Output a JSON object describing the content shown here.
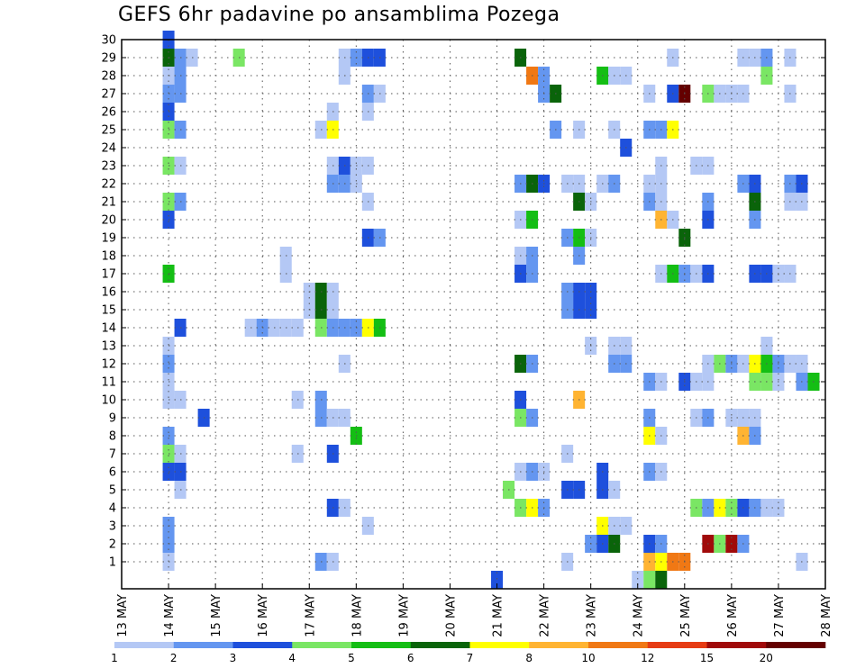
{
  "chart_data": {
    "type": "heatmap",
    "title": "GEFS 6hr padavine po ansamblima Pozega",
    "xlabel": "",
    "ylabel": "",
    "x_tick_labels": [
      "13 MAY",
      "14 MAY",
      "15 MAY",
      "16 MAY",
      "17 MAY",
      "18 MAY",
      "19 MAY",
      "20 MAY",
      "21 MAY",
      "22 MAY",
      "23 MAY",
      "24 MAY",
      "25 MAY",
      "26 MAY",
      "27 MAY",
      "28 MAY"
    ],
    "y_tick_labels": [
      1,
      2,
      3,
      4,
      5,
      6,
      7,
      8,
      9,
      10,
      11,
      12,
      13,
      14,
      15,
      16,
      17,
      18,
      19,
      20,
      21,
      22,
      23,
      24,
      25,
      26,
      27,
      28,
      29,
      30
    ],
    "x_range_days": [
      13,
      28
    ],
    "y_range_members": [
      0,
      30
    ],
    "grid": true,
    "colorbar": {
      "labels": [
        "1",
        "2",
        "3",
        "4",
        "5",
        "6",
        "7",
        "8",
        "10",
        "12",
        "15",
        "20"
      ],
      "bounds": [
        1,
        2,
        3,
        4,
        5,
        6,
        7,
        8,
        10,
        12,
        15,
        20
      ],
      "colors": [
        "#b4c8f5",
        "#6496f0",
        "#1e50dc",
        "#7ae664",
        "#14be14",
        "#0a640a",
        "#ffff00",
        "#ffb432",
        "#f07814",
        "#e63c14",
        "#a00a0a",
        "#640000"
      ]
    },
    "cell_width_days": 0.25,
    "cells": [
      [
        14.0,
        30,
        2
      ],
      [
        14.0,
        29,
        5
      ],
      [
        14.25,
        29,
        3
      ],
      [
        14.25,
        29,
        1
      ],
      [
        14.5,
        29,
        0
      ],
      [
        15.5,
        29,
        3
      ],
      [
        17.75,
        29,
        0
      ],
      [
        18.0,
        29,
        1
      ],
      [
        18.25,
        29,
        2
      ],
      [
        18.5,
        29,
        2
      ],
      [
        21.5,
        29,
        5
      ],
      [
        24.75,
        29,
        0
      ],
      [
        26.25,
        29,
        0
      ],
      [
        26.5,
        29,
        0
      ],
      [
        26.75,
        29,
        1
      ],
      [
        27.25,
        29,
        0
      ],
      [
        14.0,
        28,
        0
      ],
      [
        14.25,
        28,
        1
      ],
      [
        17.75,
        28,
        0
      ],
      [
        21.75,
        28,
        8
      ],
      [
        22.0,
        28,
        1
      ],
      [
        23.25,
        28,
        4
      ],
      [
        23.5,
        28,
        0
      ],
      [
        23.75,
        28,
        0
      ],
      [
        26.75,
        28,
        3
      ],
      [
        14.0,
        27,
        1
      ],
      [
        14.25,
        27,
        1
      ],
      [
        18.25,
        27,
        1
      ],
      [
        18.5,
        27,
        0
      ],
      [
        22.0,
        27,
        1
      ],
      [
        22.25,
        27,
        5
      ],
      [
        24.25,
        27,
        0
      ],
      [
        24.75,
        27,
        2
      ],
      [
        25.0,
        27,
        11
      ],
      [
        25.5,
        27,
        3
      ],
      [
        25.75,
        27,
        0
      ],
      [
        26.0,
        27,
        0
      ],
      [
        26.25,
        27,
        0
      ],
      [
        27.25,
        27,
        0
      ],
      [
        14.0,
        26,
        2
      ],
      [
        17.5,
        26,
        0
      ],
      [
        18.25,
        26,
        0
      ],
      [
        14.0,
        25,
        3
      ],
      [
        14.25,
        25,
        1
      ],
      [
        17.25,
        25,
        0
      ],
      [
        17.5,
        25,
        6
      ],
      [
        22.25,
        25,
        1
      ],
      [
        22.75,
        25,
        0
      ],
      [
        23.5,
        25,
        0
      ],
      [
        24.25,
        25,
        1
      ],
      [
        24.5,
        25,
        1
      ],
      [
        24.75,
        25,
        6
      ],
      [
        23.75,
        24,
        2
      ],
      [
        14.0,
        23,
        3
      ],
      [
        14.25,
        23,
        0
      ],
      [
        17.5,
        23,
        0
      ],
      [
        17.75,
        23,
        2
      ],
      [
        18.0,
        23,
        0
      ],
      [
        18.25,
        23,
        0
      ],
      [
        24.5,
        23,
        0
      ],
      [
        25.25,
        23,
        0
      ],
      [
        25.5,
        23,
        0
      ],
      [
        17.5,
        22,
        1
      ],
      [
        17.75,
        22,
        1
      ],
      [
        18.0,
        22,
        0
      ],
      [
        21.5,
        22,
        1
      ],
      [
        21.75,
        22,
        5
      ],
      [
        22.0,
        22,
        2
      ],
      [
        22.5,
        22,
        0
      ],
      [
        22.75,
        22,
        0
      ],
      [
        23.25,
        22,
        0
      ],
      [
        23.5,
        22,
        1
      ],
      [
        24.25,
        22,
        0
      ],
      [
        24.5,
        22,
        0
      ],
      [
        26.25,
        22,
        1
      ],
      [
        26.5,
        22,
        2
      ],
      [
        27.25,
        22,
        1
      ],
      [
        27.5,
        22,
        2
      ],
      [
        14.0,
        21,
        3
      ],
      [
        14.25,
        21,
        1
      ],
      [
        18.25,
        21,
        0
      ],
      [
        22.75,
        21,
        5
      ],
      [
        23.0,
        21,
        0
      ],
      [
        24.25,
        21,
        1
      ],
      [
        24.5,
        21,
        0
      ],
      [
        25.5,
        21,
        1
      ],
      [
        26.5,
        21,
        5
      ],
      [
        27.25,
        21,
        0
      ],
      [
        27.5,
        21,
        0
      ],
      [
        14.0,
        20,
        2
      ],
      [
        21.5,
        20,
        0
      ],
      [
        21.75,
        20,
        4
      ],
      [
        24.5,
        20,
        7
      ],
      [
        24.75,
        20,
        0
      ],
      [
        25.5,
        20,
        2
      ],
      [
        26.5,
        20,
        1
      ],
      [
        18.25,
        19,
        2
      ],
      [
        18.5,
        19,
        1
      ],
      [
        22.5,
        19,
        1
      ],
      [
        22.75,
        19,
        4
      ],
      [
        23.0,
        19,
        0
      ],
      [
        25.0,
        19,
        5
      ],
      [
        16.5,
        18,
        0
      ],
      [
        21.5,
        18,
        0
      ],
      [
        21.75,
        18,
        1
      ],
      [
        22.75,
        18,
        1
      ],
      [
        14.0,
        17,
        4
      ],
      [
        16.5,
        17,
        0
      ],
      [
        21.5,
        17,
        2
      ],
      [
        21.75,
        17,
        1
      ],
      [
        24.5,
        17,
        0
      ],
      [
        24.75,
        17,
        4
      ],
      [
        25.0,
        17,
        1
      ],
      [
        25.25,
        17,
        0
      ],
      [
        25.5,
        17,
        2
      ],
      [
        26.5,
        17,
        2
      ],
      [
        26.75,
        17,
        2
      ],
      [
        27.0,
        17,
        0
      ],
      [
        27.25,
        17,
        0
      ],
      [
        17.0,
        16,
        0
      ],
      [
        17.25,
        16,
        5
      ],
      [
        17.5,
        16,
        0
      ],
      [
        22.5,
        16,
        1
      ],
      [
        22.75,
        16,
        2
      ],
      [
        23.0,
        16,
        2
      ],
      [
        17.0,
        15,
        0
      ],
      [
        17.25,
        15,
        5
      ],
      [
        17.5,
        15,
        0
      ],
      [
        22.5,
        15,
        1
      ],
      [
        22.75,
        15,
        2
      ],
      [
        23.0,
        15,
        2
      ],
      [
        14.25,
        14,
        2
      ],
      [
        15.75,
        14,
        0
      ],
      [
        16.0,
        14,
        1
      ],
      [
        16.25,
        14,
        0
      ],
      [
        16.5,
        14,
        0
      ],
      [
        16.75,
        14,
        0
      ],
      [
        17.25,
        14,
        3
      ],
      [
        17.5,
        14,
        1
      ],
      [
        17.75,
        14,
        1
      ],
      [
        18.0,
        14,
        1
      ],
      [
        18.25,
        14,
        6
      ],
      [
        18.5,
        14,
        4
      ],
      [
        14.0,
        13,
        0
      ],
      [
        23.0,
        13,
        0
      ],
      [
        23.5,
        13,
        0
      ],
      [
        23.75,
        13,
        0
      ],
      [
        26.75,
        13,
        0
      ],
      [
        14.0,
        12,
        1
      ],
      [
        17.75,
        12,
        0
      ],
      [
        21.5,
        12,
        5
      ],
      [
        21.75,
        12,
        1
      ],
      [
        23.5,
        12,
        1
      ],
      [
        23.75,
        12,
        1
      ],
      [
        25.5,
        12,
        0
      ],
      [
        25.75,
        12,
        3
      ],
      [
        26.0,
        12,
        1
      ],
      [
        26.25,
        12,
        0
      ],
      [
        26.5,
        12,
        6
      ],
      [
        26.75,
        12,
        4
      ],
      [
        27.0,
        12,
        1
      ],
      [
        27.25,
        12,
        0
      ],
      [
        27.5,
        12,
        0
      ],
      [
        14.0,
        11,
        0
      ],
      [
        24.25,
        11,
        1
      ],
      [
        24.5,
        11,
        0
      ],
      [
        25.0,
        11,
        2
      ],
      [
        25.25,
        11,
        0
      ],
      [
        25.5,
        11,
        0
      ],
      [
        26.5,
        11,
        3
      ],
      [
        26.75,
        11,
        3
      ],
      [
        27.0,
        11,
        0
      ],
      [
        27.5,
        11,
        1
      ],
      [
        27.75,
        11,
        4
      ],
      [
        14.0,
        10,
        0
      ],
      [
        14.25,
        10,
        0
      ],
      [
        16.75,
        10,
        0
      ],
      [
        17.25,
        10,
        1
      ],
      [
        21.5,
        10,
        2
      ],
      [
        22.75,
        10,
        7
      ],
      [
        14.75,
        9,
        2
      ],
      [
        17.25,
        9,
        1
      ],
      [
        17.5,
        9,
        0
      ],
      [
        17.75,
        9,
        0
      ],
      [
        21.5,
        9,
        3
      ],
      [
        21.75,
        9,
        1
      ],
      [
        24.25,
        9,
        1
      ],
      [
        25.25,
        9,
        0
      ],
      [
        25.5,
        9,
        1
      ],
      [
        26.0,
        9,
        0
      ],
      [
        26.25,
        9,
        0
      ],
      [
        26.5,
        9,
        0
      ],
      [
        14.0,
        8,
        1
      ],
      [
        18.0,
        8,
        4
      ],
      [
        24.25,
        8,
        6
      ],
      [
        24.5,
        8,
        0
      ],
      [
        26.25,
        8,
        7
      ],
      [
        26.5,
        8,
        1
      ],
      [
        14.0,
        7,
        3
      ],
      [
        14.25,
        7,
        0
      ],
      [
        16.75,
        7,
        0
      ],
      [
        17.5,
        7,
        2
      ],
      [
        22.5,
        7,
        0
      ],
      [
        14.0,
        6,
        2
      ],
      [
        14.25,
        6,
        2
      ],
      [
        21.5,
        6,
        0
      ],
      [
        21.75,
        6,
        1
      ],
      [
        22.0,
        6,
        0
      ],
      [
        23.25,
        6,
        2
      ],
      [
        24.25,
        6,
        1
      ],
      [
        24.5,
        6,
        0
      ],
      [
        14.25,
        5,
        0
      ],
      [
        21.25,
        5,
        3
      ],
      [
        22.5,
        5,
        2
      ],
      [
        22.75,
        5,
        2
      ],
      [
        23.25,
        5,
        2
      ],
      [
        23.5,
        5,
        0
      ],
      [
        17.5,
        4,
        2
      ],
      [
        17.75,
        4,
        0
      ],
      [
        21.5,
        4,
        3
      ],
      [
        21.75,
        4,
        6
      ],
      [
        22.0,
        4,
        1
      ],
      [
        25.25,
        4,
        3
      ],
      [
        25.5,
        4,
        1
      ],
      [
        25.75,
        4,
        6
      ],
      [
        26.0,
        4,
        3
      ],
      [
        26.25,
        4,
        2
      ],
      [
        26.5,
        4,
        1
      ],
      [
        26.75,
        4,
        0
      ],
      [
        27.0,
        4,
        0
      ],
      [
        14.0,
        3,
        1
      ],
      [
        18.25,
        3,
        0
      ],
      [
        23.25,
        3,
        6
      ],
      [
        23.5,
        3,
        0
      ],
      [
        23.75,
        3,
        0
      ],
      [
        14.0,
        2,
        1
      ],
      [
        23.0,
        2,
        1
      ],
      [
        23.25,
        2,
        2
      ],
      [
        23.5,
        2,
        5
      ],
      [
        24.25,
        2,
        2
      ],
      [
        24.5,
        2,
        1
      ],
      [
        25.5,
        2,
        10
      ],
      [
        25.75,
        2,
        3
      ],
      [
        26.0,
        2,
        10
      ],
      [
        26.25,
        2,
        1
      ],
      [
        14.0,
        1,
        0
      ],
      [
        17.25,
        1,
        1
      ],
      [
        17.5,
        1,
        0
      ],
      [
        22.5,
        1,
        0
      ],
      [
        24.25,
        1,
        7
      ],
      [
        24.5,
        1,
        6
      ],
      [
        24.75,
        1,
        8
      ],
      [
        25.0,
        1,
        8
      ],
      [
        27.5,
        1,
        0
      ],
      [
        21.0,
        0,
        2
      ],
      [
        24.0,
        0,
        0
      ],
      [
        24.25,
        0,
        3
      ],
      [
        24.5,
        0,
        5
      ]
    ]
  }
}
